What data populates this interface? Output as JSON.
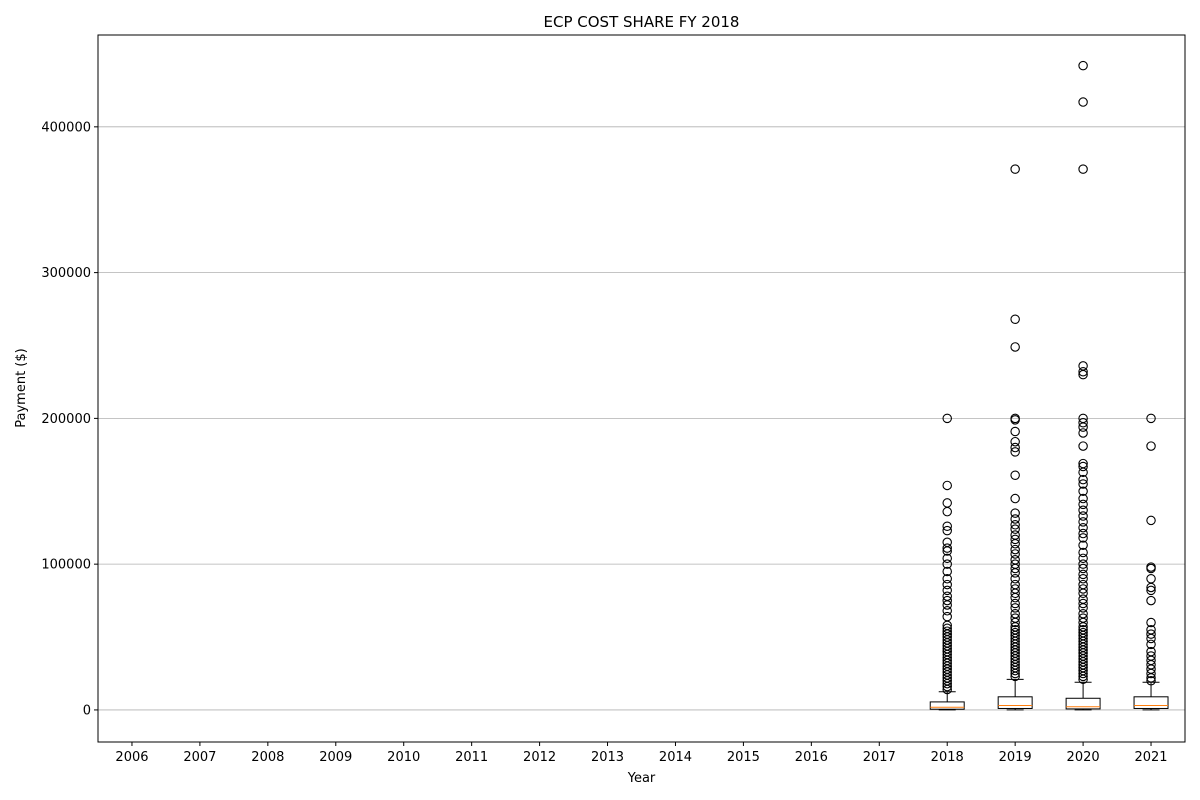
{
  "chart_data": {
    "type": "box",
    "title": "ECP COST SHARE FY 2018",
    "xlabel": "Year",
    "ylabel": "Payment ($)",
    "categories": [
      "2006",
      "2007",
      "2008",
      "2009",
      "2010",
      "2011",
      "2012",
      "2013",
      "2014",
      "2015",
      "2016",
      "2017",
      "2018",
      "2019",
      "2020",
      "2021"
    ],
    "ylim": [
      -22000,
      463000
    ],
    "yticks": [
      0,
      100000,
      200000,
      300000,
      400000
    ],
    "ytick_labels": [
      "0",
      "100000",
      "200000",
      "300000",
      "400000"
    ],
    "grid": "horizontal",
    "boxes": [
      {
        "category": "2018",
        "whisker_low": 0,
        "q1": 500,
        "median": 1800,
        "q3": 5500,
        "whisker_high": 12500,
        "outliers": [
          14000,
          16000,
          18000,
          20000,
          22000,
          24000,
          26000,
          28000,
          30000,
          32000,
          34000,
          36000,
          38000,
          40000,
          42000,
          44000,
          46000,
          48000,
          50000,
          52000,
          54000,
          56000,
          58000,
          64000,
          68000,
          72000,
          75000,
          78000,
          82000,
          86000,
          90000,
          95000,
          100000,
          104000,
          109000,
          111000,
          115000,
          123000,
          126000,
          136000,
          142000,
          154000,
          200000
        ]
      },
      {
        "category": "2019",
        "whisker_low": 0,
        "q1": 1000,
        "median": 3000,
        "q3": 9000,
        "whisker_high": 21000,
        "outliers": [
          23000,
          25000,
          27000,
          29000,
          31000,
          33000,
          35000,
          37000,
          39000,
          41000,
          43000,
          45000,
          47000,
          49000,
          51000,
          53000,
          55000,
          57000,
          60000,
          63000,
          66000,
          70000,
          73000,
          77000,
          80000,
          83000,
          86000,
          90000,
          94000,
          97000,
          100000,
          103000,
          107000,
          110000,
          114000,
          117000,
          120000,
          124000,
          127000,
          131000,
          135000,
          145000,
          161000,
          177000,
          180000,
          184000,
          191000,
          199000,
          200000,
          249000,
          268000,
          371000
        ]
      },
      {
        "category": "2020",
        "whisker_low": 0,
        "q1": 700,
        "median": 2200,
        "q3": 8000,
        "whisker_high": 19000,
        "outliers": [
          21000,
          23000,
          25000,
          27000,
          29000,
          31000,
          33000,
          35000,
          37000,
          39000,
          41000,
          43000,
          45000,
          47000,
          49000,
          51000,
          53000,
          55000,
          57000,
          60000,
          63000,
          66000,
          70000,
          73000,
          76000,
          80000,
          83000,
          86000,
          90000,
          93000,
          97000,
          100000,
          104000,
          108000,
          113000,
          118000,
          121000,
          125000,
          129000,
          133000,
          137000,
          141000,
          145000,
          150000,
          155000,
          158000,
          163000,
          167000,
          169000,
          181000,
          190000,
          194000,
          197000,
          200000,
          230000,
          232000,
          236000,
          371000,
          417000,
          442000
        ]
      },
      {
        "category": "2021",
        "whisker_low": 0,
        "q1": 1000,
        "median": 3000,
        "q3": 9000,
        "whisker_high": 19000,
        "outliers": [
          20000,
          22000,
          25000,
          28000,
          31000,
          34000,
          37000,
          40000,
          45000,
          49000,
          52000,
          55000,
          60000,
          75000,
          82000,
          84000,
          90000,
          97000,
          98000,
          130000,
          181000,
          200000
        ]
      }
    ]
  }
}
